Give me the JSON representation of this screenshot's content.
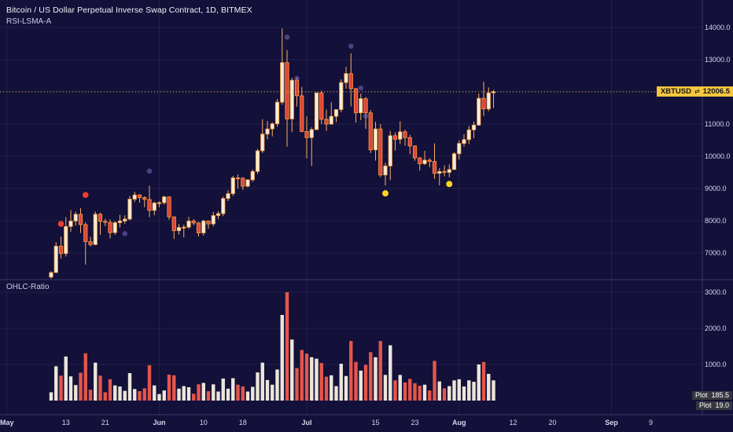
{
  "header": {
    "title": "Bitcoin / US Dollar Perpetual Inverse Swap Contract, 1D, BITMEX",
    "indicator": "RSI-LSMA-A"
  },
  "lower_panel": {
    "label": "OHLC-Ratio",
    "plot_tags": [
      {
        "label": "Plot",
        "value": "185.5"
      },
      {
        "label": "Plot",
        "value": "19.0"
      }
    ]
  },
  "price_tag": {
    "symbol": "XBTUSD",
    "arrows_icon": "⇄",
    "price": "12006.5"
  },
  "colors": {
    "background": "#131039",
    "grid": "rgba(170,165,220,0.10)",
    "axis_line": "rgba(170,165,220,0.28)",
    "axis_text": "#d8d5ec",
    "candle_up": "#f4edd9",
    "candle_down": "#e0443b",
    "candle_border": "#f99b3e",
    "wick": "#f9ae62",
    "bar_up": "#ece6db",
    "bar_down": "#e4564b",
    "price_line": "#e3b62c",
    "marker_red": "#ee3d33",
    "marker_purple": "rgba(122,106,192,0.55)",
    "marker_yellow": "#ffd51e"
  },
  "chart_data": {
    "type": "candlestick",
    "title": "Bitcoin / US Dollar Perpetual Inverse Swap Contract, 1D, BITMEX",
    "symbol": "XBTUSD",
    "timeframe": "1D",
    "exchange": "BITMEX",
    "price_line": 12006.5,
    "price_axis_ticks": [
      14000,
      13000,
      12000,
      11000,
      10000,
      9000,
      8000,
      7000
    ],
    "ratio_axis_ticks": [
      3000,
      2000,
      1000
    ],
    "month_grid_days": [
      0,
      31,
      61,
      92,
      123
    ],
    "time_axis": [
      {
        "label": "May",
        "d": 0
      },
      {
        "label": "13",
        "d": 12
      },
      {
        "label": "21",
        "d": 20
      },
      {
        "label": "Jun",
        "d": 31
      },
      {
        "label": "10",
        "d": 40
      },
      {
        "label": "18",
        "d": 48
      },
      {
        "label": "Jul",
        "d": 61
      },
      {
        "label": "15",
        "d": 75
      },
      {
        "label": "23",
        "d": 83
      },
      {
        "label": "Aug",
        "d": 92
      },
      {
        "label": "12",
        "d": 103
      },
      {
        "label": "20",
        "d": 111
      },
      {
        "label": "Sep",
        "d": 123
      },
      {
        "label": "9",
        "d": 131
      }
    ],
    "candles_format": [
      "day_index_from_May1",
      "open",
      "high",
      "low",
      "close"
    ],
    "candles": [
      [
        9,
        6250,
        6430,
        6200,
        6390
      ],
      [
        10,
        6390,
        7330,
        6380,
        7210
      ],
      [
        11,
        7210,
        7510,
        6820,
        6980
      ],
      [
        12,
        6980,
        8110,
        6890,
        7820
      ],
      [
        13,
        7820,
        8330,
        7660,
        7990
      ],
      [
        14,
        7990,
        8280,
        7850,
        8200
      ],
      [
        15,
        8200,
        8390,
        7620,
        7880
      ],
      [
        16,
        7880,
        7950,
        6640,
        7350
      ],
      [
        17,
        7350,
        7500,
        7200,
        7260
      ],
      [
        18,
        7260,
        8290,
        7240,
        8200
      ],
      [
        19,
        8200,
        8250,
        7560,
        7980
      ],
      [
        20,
        7980,
        8060,
        7830,
        7950
      ],
      [
        21,
        7950,
        8040,
        7450,
        7630
      ],
      [
        22,
        7630,
        7980,
        7560,
        7940
      ],
      [
        23,
        7940,
        8180,
        7790,
        7990
      ],
      [
        24,
        7990,
        8170,
        7900,
        8050
      ],
      [
        25,
        8050,
        8770,
        8010,
        8670
      ],
      [
        26,
        8670,
        8900,
        8580,
        8800
      ],
      [
        27,
        8800,
        8820,
        8560,
        8720
      ],
      [
        28,
        8720,
        8760,
        8420,
        8660
      ],
      [
        29,
        8660,
        9090,
        8110,
        8320
      ],
      [
        30,
        8320,
        8590,
        8170,
        8550
      ],
      [
        31,
        8550,
        8600,
        8420,
        8560
      ],
      [
        32,
        8560,
        8780,
        8500,
        8740
      ],
      [
        33,
        8740,
        8750,
        8030,
        8120
      ],
      [
        34,
        8120,
        8130,
        7430,
        7690
      ],
      [
        35,
        7690,
        7900,
        7570,
        7790
      ],
      [
        36,
        7790,
        7880,
        7480,
        7800
      ],
      [
        37,
        7800,
        8120,
        7750,
        7990
      ],
      [
        38,
        7990,
        8050,
        7860,
        7930
      ],
      [
        39,
        7930,
        7960,
        7510,
        7620
      ],
      [
        40,
        7620,
        8030,
        7540,
        7990
      ],
      [
        41,
        7990,
        8010,
        7750,
        7900
      ],
      [
        42,
        7900,
        8270,
        7820,
        8160
      ],
      [
        43,
        8160,
        8300,
        8050,
        8220
      ],
      [
        44,
        8220,
        8750,
        8140,
        8690
      ],
      [
        45,
        8690,
        8940,
        8610,
        8840
      ],
      [
        46,
        8840,
        9390,
        8770,
        9330
      ],
      [
        47,
        9330,
        9440,
        9000,
        9320
      ],
      [
        48,
        9320,
        9350,
        8960,
        9070
      ],
      [
        49,
        9070,
        9290,
        9040,
        9270
      ],
      [
        50,
        9270,
        9590,
        9210,
        9530
      ],
      [
        51,
        9530,
        10230,
        9450,
        10170
      ],
      [
        52,
        10170,
        11150,
        10100,
        10690
      ],
      [
        53,
        10690,
        11100,
        10530,
        10850
      ],
      [
        54,
        10850,
        11060,
        10620,
        11010
      ],
      [
        55,
        11010,
        11780,
        10920,
        11680
      ],
      [
        56,
        11680,
        13970,
        11600,
        12910
      ],
      [
        57,
        12910,
        13300,
        10300,
        11160
      ],
      [
        58,
        11160,
        12440,
        10750,
        12360
      ],
      [
        59,
        12360,
        12450,
        11550,
        11880
      ],
      [
        60,
        11880,
        12150,
        10750,
        10770
      ],
      [
        61,
        10770,
        11240,
        9940,
        10580
      ],
      [
        62,
        10580,
        10900,
        9700,
        10830
      ],
      [
        63,
        10830,
        11980,
        10820,
        11970
      ],
      [
        64,
        11970,
        12040,
        11000,
        11150
      ],
      [
        65,
        11150,
        11450,
        10790,
        11000
      ],
      [
        66,
        11000,
        11680,
        10980,
        11240
      ],
      [
        67,
        11240,
        11460,
        11060,
        11450
      ],
      [
        68,
        11450,
        12390,
        11370,
        12290
      ],
      [
        69,
        12290,
        12780,
        12100,
        12570
      ],
      [
        70,
        12570,
        13200,
        11550,
        12100
      ],
      [
        71,
        12100,
        12120,
        11050,
        11350
      ],
      [
        72,
        11350,
        11950,
        11120,
        11790
      ],
      [
        73,
        11790,
        11840,
        10850,
        11350
      ],
      [
        74,
        11350,
        11440,
        10100,
        10200
      ],
      [
        75,
        10200,
        11070,
        9870,
        10850
      ],
      [
        76,
        10850,
        11000,
        9350,
        9420
      ],
      [
        77,
        9420,
        9800,
        9090,
        9700
      ],
      [
        78,
        9700,
        10790,
        9260,
        10640
      ],
      [
        79,
        10640,
        10740,
        10180,
        10530
      ],
      [
        80,
        10530,
        11090,
        10380,
        10760
      ],
      [
        81,
        10760,
        10830,
        10330,
        10580
      ],
      [
        82,
        10580,
        10670,
        10070,
        10320
      ],
      [
        83,
        10320,
        10340,
        9860,
        9950
      ],
      [
        84,
        9950,
        9970,
        9560,
        9770
      ],
      [
        85,
        9770,
        10170,
        9730,
        9880
      ],
      [
        86,
        9880,
        9940,
        9660,
        9840
      ],
      [
        87,
        9840,
        10400,
        9300,
        9470
      ],
      [
        88,
        9470,
        9630,
        9100,
        9530
      ],
      [
        89,
        9530,
        9720,
        9380,
        9500
      ],
      [
        90,
        9500,
        9750,
        9350,
        9590
      ],
      [
        91,
        9590,
        10130,
        9570,
        10080
      ],
      [
        92,
        10080,
        10490,
        9900,
        10400
      ],
      [
        93,
        10400,
        10690,
        10300,
        10520
      ],
      [
        94,
        10520,
        10940,
        10380,
        10820
      ],
      [
        95,
        10820,
        11080,
        10560,
        10970
      ],
      [
        96,
        10970,
        11950,
        10950,
        11800
      ],
      [
        97,
        11800,
        12320,
        11250,
        11470
      ],
      [
        98,
        11470,
        12140,
        11400,
        11970
      ],
      [
        99,
        11970,
        12060,
        11500,
        12006.5
      ]
    ],
    "lower_series": {
      "name": "OHLC-Ratio",
      "rule": "bar height = high - low; red on down day, white on up day",
      "last_values": [
        185.5,
        19.0
      ]
    },
    "markers_format": [
      "day_index",
      "price",
      "color"
    ],
    "markers": [
      [
        11,
        7900,
        "red"
      ],
      [
        16,
        8800,
        "red"
      ],
      [
        24,
        7600,
        "purple"
      ],
      [
        29,
        9540,
        "purple"
      ],
      [
        57,
        13700,
        "purple"
      ],
      [
        59,
        12420,
        "purple"
      ],
      [
        70,
        13420,
        "purple"
      ],
      [
        72,
        12120,
        "purple"
      ],
      [
        73,
        11250,
        "purple"
      ],
      [
        77,
        8850,
        "yellow"
      ],
      [
        90,
        9140,
        "yellow"
      ]
    ]
  }
}
